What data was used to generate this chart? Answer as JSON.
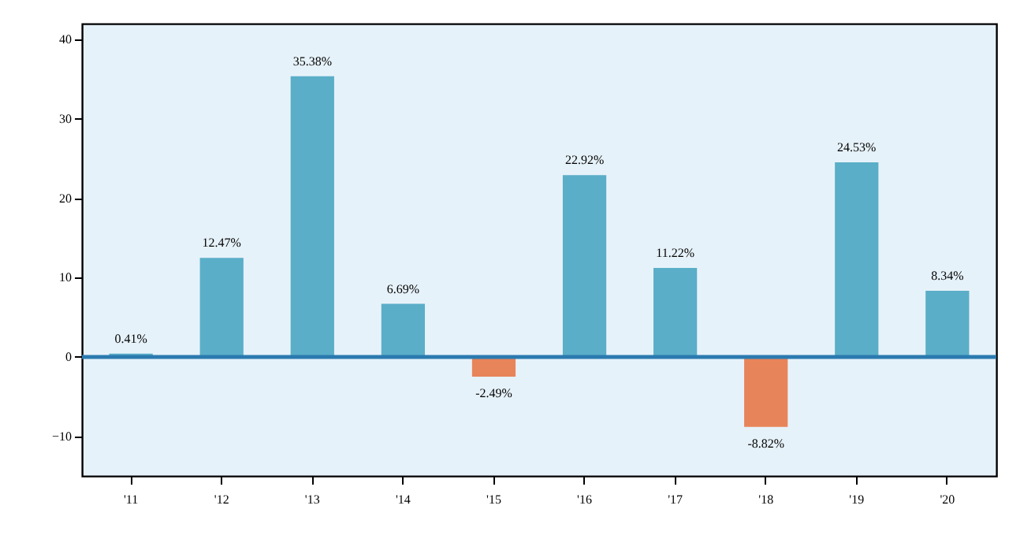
{
  "chart_data": {
    "type": "bar",
    "categories": [
      "'11",
      "'12",
      "'13",
      "'14",
      "'15",
      "'16",
      "'17",
      "'18",
      "'19",
      "'20"
    ],
    "values": [
      0.41,
      12.47,
      35.38,
      6.69,
      -2.49,
      22.92,
      11.22,
      -8.82,
      24.53,
      8.34
    ],
    "colors": [
      "#5aaec8",
      "#5aaec8",
      "#5aaec8",
      "#5aaec8",
      "#e8845a",
      "#5aaec8",
      "#5aaec8",
      "#e8845a",
      "#5aaec8",
      "#5aaec8"
    ],
    "value_labels": [
      "0.41%",
      "12.47%",
      "35.38%",
      "6.69%",
      "-2.49%",
      "22.92%",
      "11.22%",
      "-8.82%",
      "24.53%",
      "8.34%"
    ],
    "ylim": [
      -15,
      42
    ],
    "yticks": [
      -10,
      0,
      10,
      20,
      30,
      40
    ],
    "ref_lines": [
      {
        "axis": "y",
        "value": 0,
        "color": "#2a7ab0"
      }
    ],
    "grid": false
  }
}
